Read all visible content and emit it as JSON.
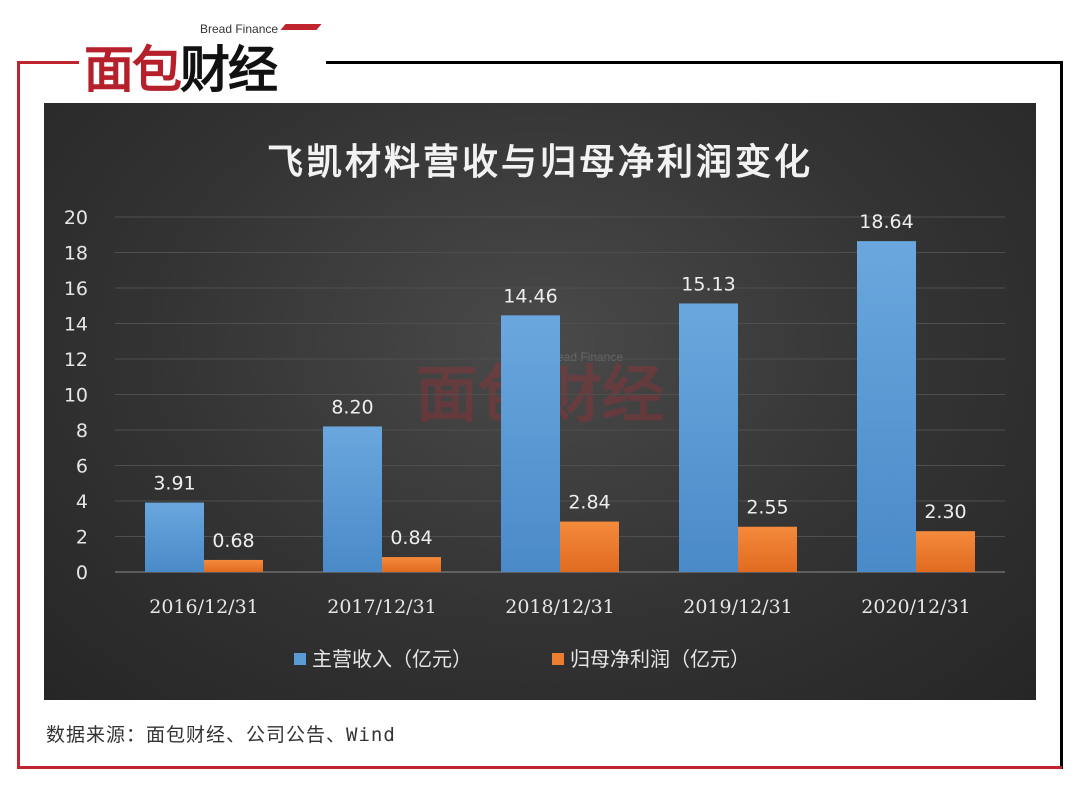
{
  "logo": {
    "en": "Bread Finance",
    "cn_red": "面包",
    "cn_black": "财经"
  },
  "source": "数据来源：面包财经、公司公告、Wind",
  "colors": {
    "series1": "#5b9bd5",
    "series2": "#ed7d31",
    "frame_red": "#c0252f",
    "background": "#333333"
  },
  "chart_data": {
    "type": "bar",
    "title": "飞凯材料营收与归母净利润变化",
    "categories": [
      "2016/12/31",
      "2017/12/31",
      "2018/12/31",
      "2019/12/31",
      "2020/12/31"
    ],
    "series": [
      {
        "name": "主营收入（亿元）",
        "values": [
          3.91,
          8.2,
          14.46,
          15.13,
          18.64
        ],
        "labels": [
          "3.91",
          "8.20",
          "14.46",
          "15.13",
          "18.64"
        ]
      },
      {
        "name": "归母净利润（亿元）",
        "values": [
          0.68,
          0.84,
          2.84,
          2.55,
          2.3
        ],
        "labels": [
          "0.68",
          "0.84",
          "2.84",
          "2.55",
          "2.30"
        ]
      }
    ],
    "ylim": [
      0,
      20
    ],
    "yticks": [
      0,
      2,
      4,
      6,
      8,
      10,
      12,
      14,
      16,
      18,
      20
    ],
    "grid": true,
    "legend": "bottom",
    "watermark": "面包财经 Bread Finance"
  }
}
